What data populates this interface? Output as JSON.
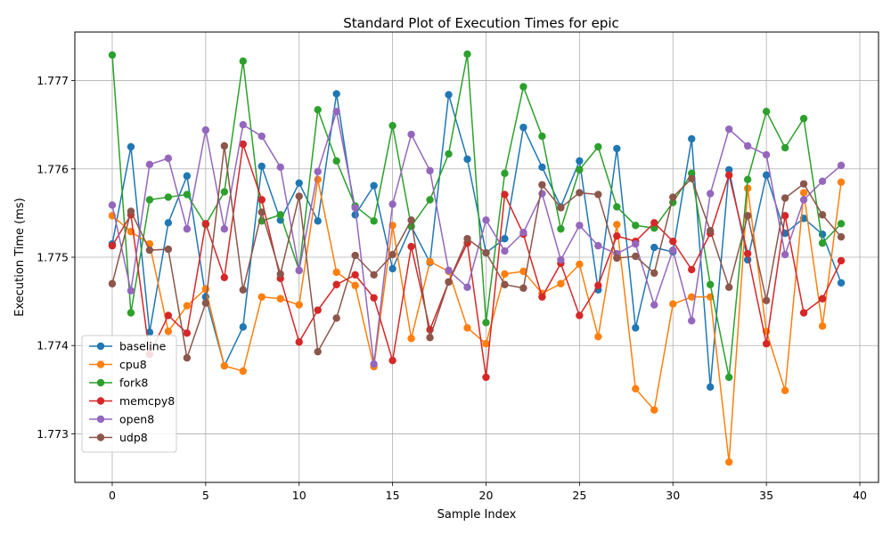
{
  "chart_data": {
    "type": "line",
    "title": "Standard Plot of Execution Times for epic",
    "xlabel": "Sample Index",
    "ylabel": "Execution Time (ms)",
    "xlim": [
      -2,
      41
    ],
    "ylim": [
      1.77245,
      1.77755
    ],
    "xticks": [
      0,
      5,
      10,
      15,
      20,
      25,
      30,
      35,
      40
    ],
    "xtick_labels": [
      "0",
      "5",
      "10",
      "15",
      "20",
      "25",
      "30",
      "35",
      "40"
    ],
    "yticks": [
      1.773,
      1.774,
      1.775,
      1.776,
      1.777
    ],
    "ytick_labels": [
      "1.773",
      "1.774",
      "1.775",
      "1.776",
      "1.777"
    ],
    "grid": true,
    "legend_position": "lower-left",
    "x": [
      0,
      1,
      2,
      3,
      4,
      5,
      6,
      7,
      8,
      9,
      10,
      11,
      12,
      13,
      14,
      15,
      16,
      17,
      18,
      19,
      20,
      21,
      22,
      23,
      24,
      25,
      26,
      27,
      28,
      29,
      30,
      31,
      32,
      33,
      34,
      35,
      36,
      37,
      38,
      39
    ],
    "series": [
      {
        "name": "baseline",
        "color": "#1f77b4",
        "values": [
          1.77515,
          1.77625,
          1.77415,
          1.77539,
          1.77592,
          1.77455,
          1.77377,
          1.77421,
          1.77603,
          1.77542,
          1.77584,
          1.77541,
          1.77685,
          1.77548,
          1.77581,
          1.77487,
          1.77535,
          1.77494,
          1.77684,
          1.77611,
          1.77505,
          1.77521,
          1.77647,
          1.77602,
          1.77557,
          1.77609,
          1.77463,
          1.77623,
          1.7742,
          1.77511,
          1.77506,
          1.77634,
          1.77353,
          1.77599,
          1.77497,
          1.77593,
          1.77527,
          1.77544,
          1.77526,
          1.77471
        ]
      },
      {
        "name": "cpu8",
        "color": "#ff7f0e",
        "values": [
          1.77547,
          1.77529,
          1.77515,
          1.77416,
          1.77445,
          1.77464,
          1.77377,
          1.77371,
          1.77455,
          1.77453,
          1.77446,
          1.77588,
          1.77483,
          1.77468,
          1.77376,
          1.77536,
          1.77408,
          1.77495,
          1.77484,
          1.7742,
          1.77402,
          1.77481,
          1.77484,
          1.77459,
          1.7747,
          1.77492,
          1.7741,
          1.77537,
          1.77351,
          1.77327,
          1.77447,
          1.77455,
          1.77455,
          1.77268,
          1.77578,
          1.77416,
          1.77349,
          1.77573,
          1.77422,
          1.77585
        ]
      },
      {
        "name": "fork8",
        "color": "#2ca02c",
        "values": [
          1.77729,
          1.77437,
          1.77565,
          1.77568,
          1.77571,
          1.77537,
          1.77574,
          1.77722,
          1.77541,
          1.77548,
          1.77485,
          1.77667,
          1.77609,
          1.77558,
          1.77541,
          1.77649,
          1.77535,
          1.77565,
          1.77617,
          1.7773,
          1.77426,
          1.77595,
          1.77693,
          1.77637,
          1.77532,
          1.77599,
          1.77625,
          1.77557,
          1.77536,
          1.77533,
          1.77562,
          1.77595,
          1.77469,
          1.77364,
          1.77588,
          1.77665,
          1.77624,
          1.77657,
          1.77516,
          1.77538
        ]
      },
      {
        "name": "memcpy8",
        "color": "#d62728",
        "values": [
          1.77513,
          1.77548,
          1.7739,
          1.77434,
          1.77414,
          1.77538,
          1.77477,
          1.77628,
          1.77565,
          1.77476,
          1.77404,
          1.7744,
          1.77469,
          1.7748,
          1.77454,
          1.77383,
          1.77512,
          1.77418,
          1.77472,
          1.77516,
          1.77364,
          1.77571,
          1.77526,
          1.77455,
          1.77493,
          1.77434,
          1.77468,
          1.77524,
          1.77518,
          1.77539,
          1.77518,
          1.77486,
          1.77527,
          1.77593,
          1.77504,
          1.77402,
          1.77547,
          1.77437,
          1.77453,
          1.77496
        ]
      },
      {
        "name": "open8",
        "color": "#9467bd",
        "values": [
          1.77559,
          1.77462,
          1.77605,
          1.77612,
          1.77532,
          1.77644,
          1.77532,
          1.7765,
          1.77637,
          1.77602,
          1.77485,
          1.77597,
          1.77665,
          1.77556,
          1.77379,
          1.7756,
          1.77639,
          1.77598,
          1.77485,
          1.77466,
          1.77542,
          1.77507,
          1.77528,
          1.77572,
          1.77497,
          1.77536,
          1.77513,
          1.77504,
          1.77515,
          1.77446,
          1.77508,
          1.77428,
          1.77572,
          1.77645,
          1.77626,
          1.77616,
          1.77503,
          1.77565,
          1.77586,
          1.77604
        ]
      },
      {
        "name": "udp8",
        "color": "#8c564b",
        "values": [
          1.7747,
          1.77552,
          1.77508,
          1.77509,
          1.77386,
          1.77448,
          1.77626,
          1.77463,
          1.77551,
          1.77481,
          1.77569,
          1.77393,
          1.77431,
          1.77502,
          1.7748,
          1.77503,
          1.77542,
          1.77409,
          1.77472,
          1.77521,
          1.77505,
          1.77469,
          1.77465,
          1.77582,
          1.77556,
          1.77573,
          1.77571,
          1.77499,
          1.77501,
          1.77482,
          1.77568,
          1.77589,
          1.7753,
          1.77466,
          1.77547,
          1.77451,
          1.77567,
          1.77583,
          1.77548,
          1.77523
        ]
      }
    ]
  }
}
